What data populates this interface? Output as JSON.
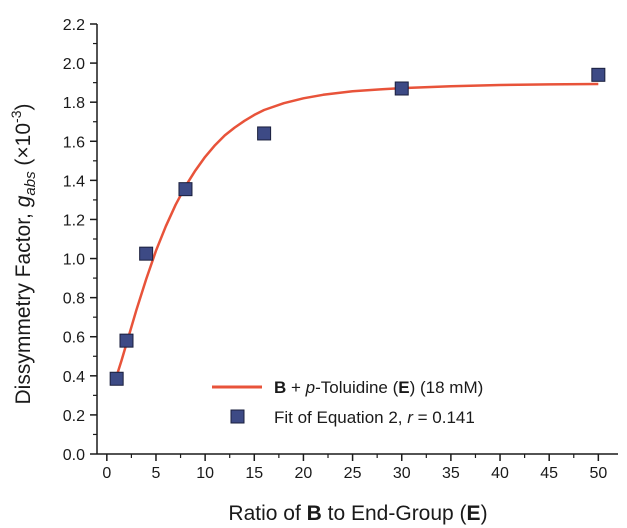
{
  "chart_data": {
    "type": "scatter",
    "xlabel": {
      "prefix": "Ratio of ",
      "bold_b": "B",
      "middle": " to End-Group (",
      "bold_e": "E",
      "suffix": ")"
    },
    "ylabel": {
      "prefix": "Dissymmetry Factor, ",
      "g": "g",
      "sub": "abs",
      "open": " (×10",
      "sup": "-3",
      "close": ")"
    },
    "xlim": [
      -1,
      52
    ],
    "ylim": [
      0,
      2.2
    ],
    "x_ticks": [
      0,
      5,
      10,
      15,
      20,
      25,
      30,
      35,
      40,
      45,
      50
    ],
    "y_ticks": [
      "0.0",
      "0.2",
      "0.4",
      "0.6",
      "0.8",
      "1.0",
      "1.2",
      "1.4",
      "1.6",
      "1.8",
      "2.0",
      "2.2"
    ],
    "grid": false,
    "legend_position": "bottom-right",
    "colors": {
      "line": "#e8533a",
      "marker_fill": "#3d4a85",
      "marker_edge": "#1a1f3d",
      "axis": "#1a1a1a"
    },
    "series": [
      {
        "kind": "line",
        "label_parts": [
          {
            "text": "B",
            "style": "bold"
          },
          {
            "text": " + ",
            "style": "normal"
          },
          {
            "text": "p",
            "style": "italic"
          },
          {
            "text": "-Toluidine (",
            "style": "normal"
          },
          {
            "text": "E",
            "style": "bold"
          },
          {
            "text": ") (18 mM)",
            "style": "normal"
          }
        ],
        "x": [
          1,
          1.5,
          2,
          3,
          4,
          5,
          6,
          7,
          8,
          9,
          10,
          11,
          12,
          13,
          14,
          15,
          16,
          18,
          20,
          22,
          25,
          28,
          30,
          35,
          40,
          45,
          50
        ],
        "y": [
          0.4,
          0.48,
          0.565,
          0.735,
          0.895,
          1.04,
          1.165,
          1.275,
          1.37,
          1.45,
          1.52,
          1.58,
          1.63,
          1.67,
          1.705,
          1.735,
          1.76,
          1.795,
          1.82,
          1.838,
          1.856,
          1.866,
          1.872,
          1.882,
          1.888,
          1.891,
          1.893
        ]
      },
      {
        "kind": "marker",
        "label_parts": [
          {
            "text": "Fit of Equation 2, ",
            "style": "normal"
          },
          {
            "text": "r",
            "style": "italic"
          },
          {
            "text": " = 0.141",
            "style": "normal"
          }
        ],
        "x": [
          1,
          2,
          4,
          8,
          16,
          30,
          50
        ],
        "y": [
          0.385,
          0.58,
          1.025,
          1.355,
          1.64,
          1.87,
          1.94
        ]
      }
    ]
  }
}
